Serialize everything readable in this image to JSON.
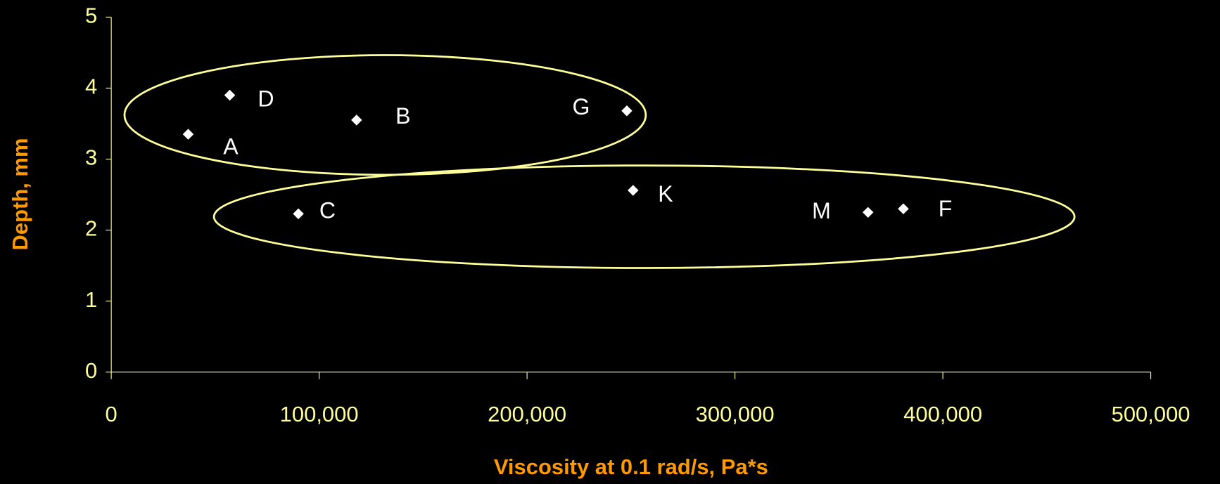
{
  "chart_data": {
    "type": "scatter",
    "x_label": "Viscosity at 0.1 rad/s, Pa*s",
    "y_label": "Depth, mm",
    "labels": [
      "A",
      "D",
      "B",
      "G",
      "C",
      "K",
      "M",
      "F"
    ],
    "x": [
      37000,
      57000,
      118000,
      248000,
      90000,
      251000,
      364000,
      381000
    ],
    "values": [
      3.35,
      3.9,
      3.55,
      3.68,
      2.23,
      2.56,
      2.25,
      2.3
    ],
    "color": "#ffffff",
    "xlim": [
      0,
      500000
    ],
    "xticks": [
      0,
      {
        "value": 100000,
        "label": "100,000"
      },
      {
        "value": 200000,
        "label": "200,000"
      },
      {
        "value": 300000,
        "label": "300,000"
      },
      {
        "value": 400000,
        "label": "400,000"
      },
      {
        "value": 500000,
        "label": "500,000"
      }
    ],
    "ylim": [
      0,
      5
    ],
    "yticks": [
      0,
      1,
      2,
      3,
      4,
      5
    ]
  }
}
